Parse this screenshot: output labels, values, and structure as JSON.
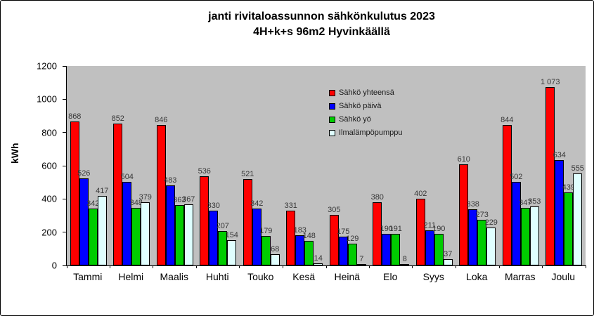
{
  "title_line1": "janti rivitaloassunnon sähkönkulutus 2023",
  "title_line2": "4H+k+s 96m2 Hyvinkäällä",
  "chart_data": {
    "type": "bar",
    "title": "janti rivitaloassunnon sähkönkulutus 2023 4H+k+s 96m2 Hyvinkäällä",
    "xlabel": "",
    "ylabel": "kWh",
    "ylim": [
      0,
      1200
    ],
    "yticks": [
      0,
      200,
      400,
      600,
      800,
      1000,
      1200
    ],
    "grid": false,
    "legend_position": "inside-top-center",
    "plot_background": "#c0c0c0",
    "categories": [
      "Tammi",
      "Helmi",
      "Maalis",
      "Huhti",
      "Touko",
      "Kesä",
      "Heinä",
      "Elo",
      "Syys",
      "Loka",
      "Marras",
      "Joulu"
    ],
    "series": [
      {
        "name": "Sähkö yhteensä",
        "color": "#ff0000",
        "values": [
          868,
          852,
          846,
          536,
          521,
          331,
          305,
          380,
          402,
          610,
          844,
          1073
        ]
      },
      {
        "name": "Sähkö päivä",
        "color": "#0000ff",
        "values": [
          526,
          504,
          483,
          330,
          342,
          183,
          175,
          190,
          211,
          338,
          502,
          634
        ]
      },
      {
        "name": "Sähkö yö",
        "color": "#00cc00",
        "values": [
          342,
          348,
          363,
          207,
          179,
          148,
          129,
          191,
          190,
          273,
          347,
          439
        ]
      },
      {
        "name": "Ilmalämpöpumppu",
        "color": "#e0ffff",
        "values": [
          417,
          379,
          367,
          154,
          68,
          14,
          7,
          8,
          37,
          229,
          353,
          555
        ]
      }
    ]
  }
}
